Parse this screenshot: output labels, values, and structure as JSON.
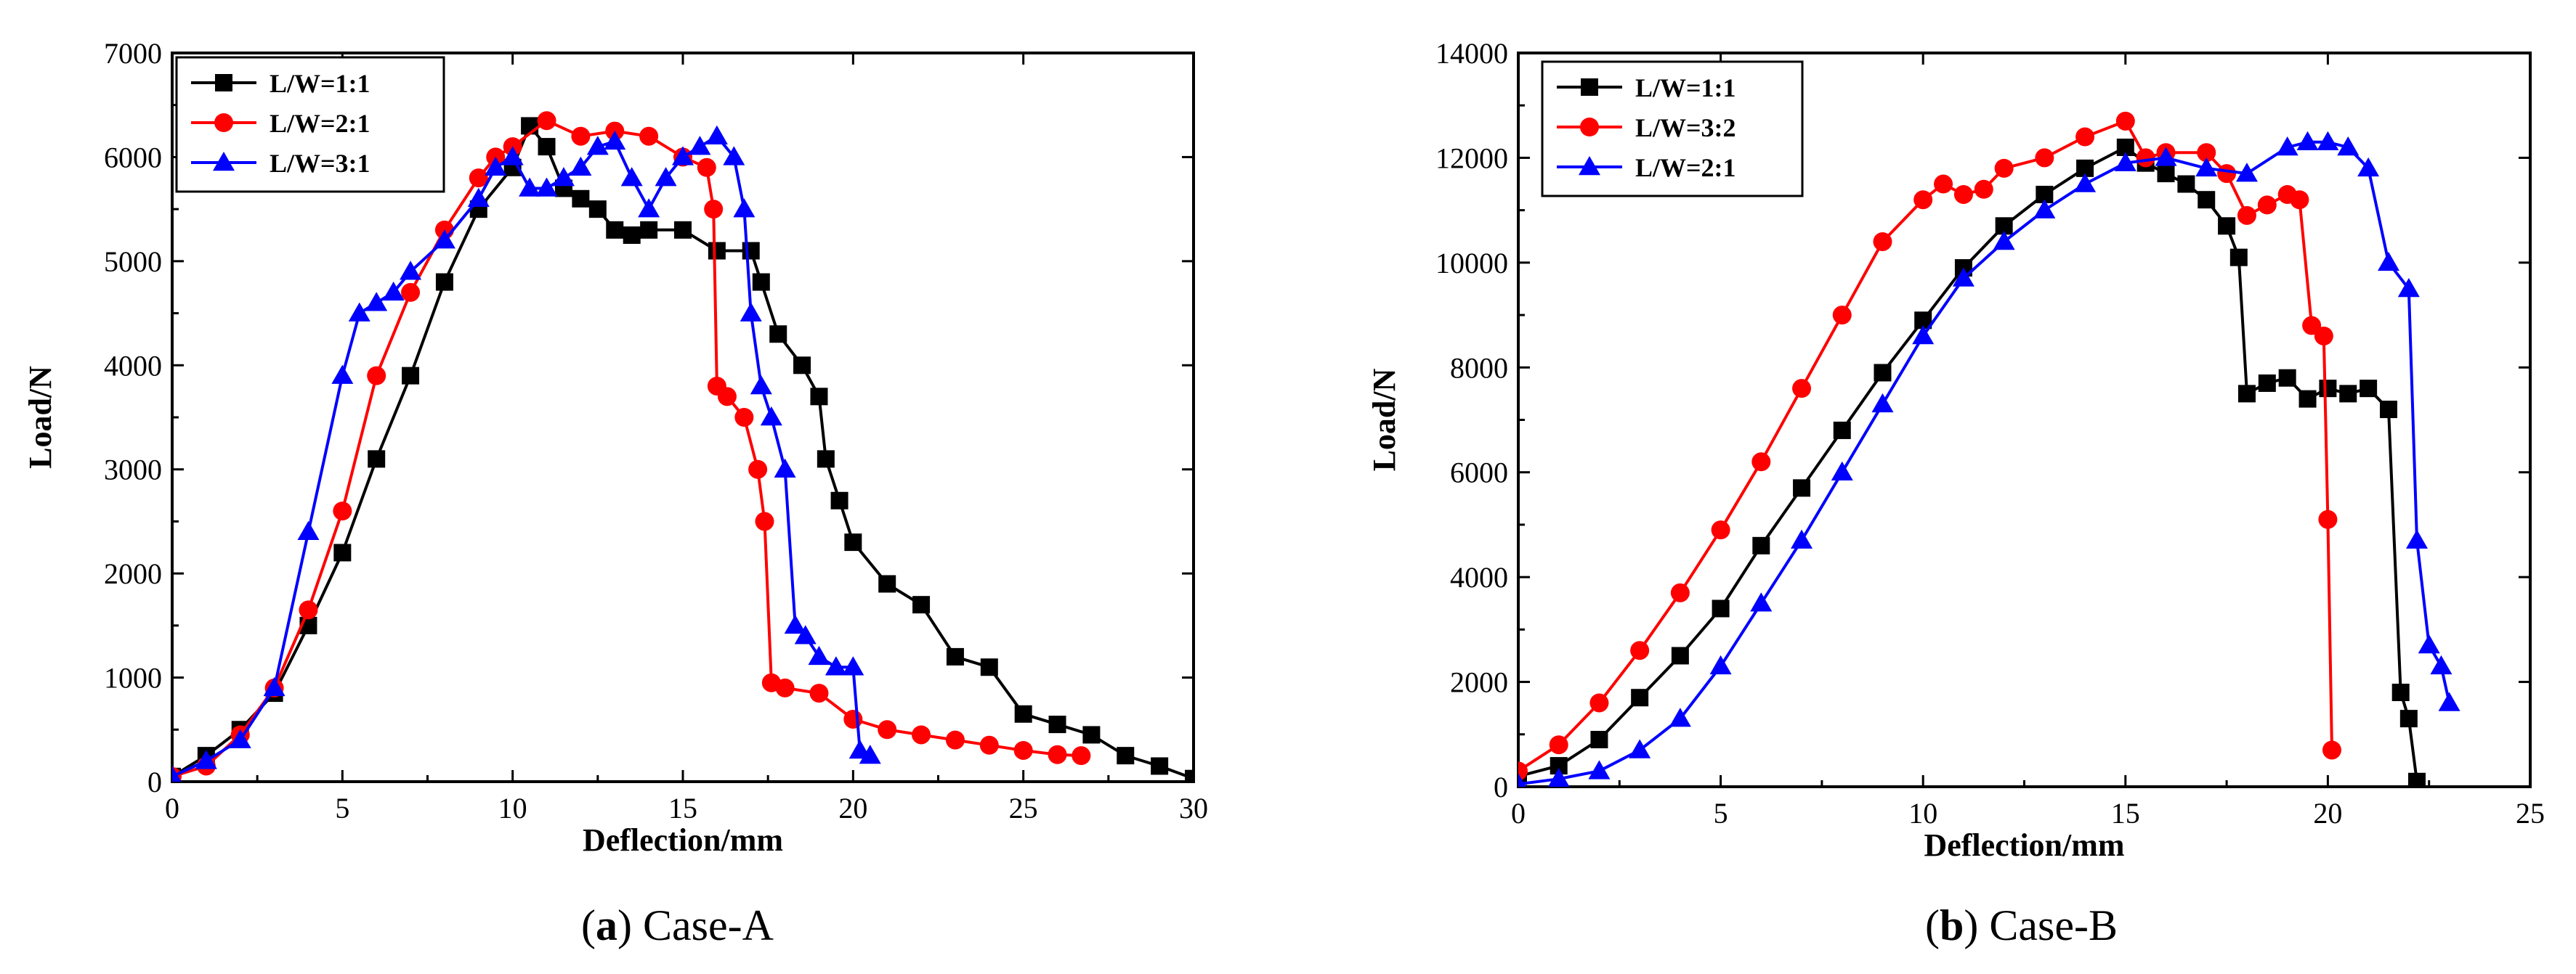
{
  "colors": {
    "series1": "#000000",
    "series2": "#ff0000",
    "series3": "#0000ff"
  },
  "chart_data": [
    {
      "type": "line",
      "caption": {
        "letter": "a",
        "text": "Case-A"
      },
      "xlabel": "Deflection/mm",
      "ylabel": "Load/N",
      "xlim": [
        0,
        30
      ],
      "ylim": [
        0,
        7000
      ],
      "xticks": [
        0,
        5,
        10,
        15,
        20,
        25,
        30
      ],
      "yticks": [
        0,
        1000,
        2000,
        3000,
        4000,
        5000,
        6000,
        7000
      ],
      "legend_position": "top-left",
      "series": [
        {
          "name": "L/W=1:1",
          "marker": "square",
          "color": "#000000",
          "x": [
            0,
            1,
            2,
            3,
            4,
            5,
            6,
            7,
            8,
            9,
            10,
            10.5,
            11,
            11.5,
            12,
            12.5,
            13,
            13.5,
            14,
            15,
            16,
            17,
            17.3,
            17.8,
            18.5,
            19,
            19.2,
            19.6,
            20,
            21,
            22,
            23,
            24,
            25,
            26,
            27,
            28,
            29,
            30
          ],
          "y": [
            50,
            250,
            500,
            850,
            1500,
            2200,
            3100,
            3900,
            4800,
            5500,
            5900,
            6300,
            6100,
            5700,
            5600,
            5500,
            5300,
            5250,
            5300,
            5300,
            5100,
            5100,
            4800,
            4300,
            4000,
            3700,
            3100,
            2700,
            2300,
            1900,
            1700,
            1200,
            1100,
            650,
            550,
            450,
            250,
            150,
            30
          ]
        },
        {
          "name": "L/W=2:1",
          "marker": "circle",
          "color": "#ff0000",
          "x": [
            0,
            1,
            2,
            3,
            4,
            5,
            6,
            7,
            8,
            9,
            9.5,
            10,
            11,
            12,
            13,
            14,
            15,
            15.7,
            15.9,
            16,
            16.3,
            16.8,
            17.2,
            17.4,
            17.6,
            18,
            19,
            20,
            21,
            22,
            23,
            24,
            25,
            26,
            26.7
          ],
          "y": [
            50,
            150,
            450,
            900,
            1650,
            2600,
            3900,
            4700,
            5300,
            5800,
            6000,
            6100,
            6350,
            6200,
            6250,
            6200,
            6000,
            5900,
            5500,
            3800,
            3700,
            3500,
            3000,
            2500,
            950,
            900,
            850,
            600,
            500,
            450,
            400,
            350,
            300,
            260,
            250
          ]
        },
        {
          "name": "L/W=3:1",
          "marker": "triangle",
          "color": "#0000ff",
          "x": [
            0,
            1,
            2,
            3,
            4,
            5,
            5.5,
            6,
            6.5,
            7,
            8,
            9,
            9.5,
            10,
            10.5,
            11,
            11.5,
            12,
            12.5,
            13,
            13.5,
            14,
            14.5,
            15,
            15.5,
            16,
            16.5,
            16.8,
            17,
            17.3,
            17.6,
            18,
            18.3,
            18.6,
            19,
            19.5,
            20,
            20.2,
            20.5
          ],
          "y": [
            50,
            200,
            400,
            900,
            2400,
            3900,
            4500,
            4600,
            4700,
            4900,
            5200,
            5600,
            5900,
            6000,
            5700,
            5700,
            5800,
            5900,
            6100,
            6150,
            5800,
            5500,
            5800,
            6000,
            6100,
            6200,
            6000,
            5500,
            4500,
            3800,
            3500,
            3000,
            1500,
            1400,
            1200,
            1100,
            1100,
            300,
            250
          ]
        }
      ]
    },
    {
      "type": "line",
      "caption": {
        "letter": "b",
        "text": "Case-B"
      },
      "xlabel": "Deflection/mm",
      "ylabel": "Load/N",
      "xlim": [
        0,
        25
      ],
      "ylim": [
        0,
        14000
      ],
      "xticks": [
        0,
        5,
        10,
        15,
        20,
        25
      ],
      "yticks": [
        0,
        2000,
        4000,
        6000,
        8000,
        10000,
        12000,
        14000
      ],
      "legend_position": "top-left",
      "series": [
        {
          "name": "L/W=1:1",
          "marker": "square",
          "color": "#000000",
          "x": [
            0,
            1,
            2,
            3,
            4,
            5,
            6,
            7,
            8,
            9,
            10,
            11,
            12,
            13,
            14,
            15,
            15.5,
            16,
            16.5,
            17,
            17.5,
            17.8,
            18,
            18.5,
            19,
            19.5,
            20,
            20.5,
            21,
            21.5,
            21.8,
            22,
            22.2
          ],
          "y": [
            200,
            400,
            900,
            1700,
            2500,
            3400,
            4600,
            5700,
            6800,
            7900,
            8900,
            9900,
            10700,
            11300,
            11800,
            12200,
            11900,
            11700,
            11500,
            11200,
            10700,
            10100,
            7500,
            7700,
            7800,
            7400,
            7600,
            7500,
            7600,
            7200,
            1800,
            1300,
            100
          ]
        },
        {
          "name": "L/W=3:2",
          "marker": "circle",
          "color": "#ff0000",
          "x": [
            0,
            1,
            2,
            3,
            4,
            5,
            6,
            7,
            8,
            9,
            10,
            10.5,
            11,
            11.5,
            12,
            13,
            14,
            15,
            15.5,
            16,
            17,
            17.5,
            18,
            18.5,
            19,
            19.3,
            19.6,
            19.9,
            20,
            20.1
          ],
          "y": [
            300,
            800,
            1600,
            2600,
            3700,
            4900,
            6200,
            7600,
            9000,
            10400,
            11200,
            11500,
            11300,
            11400,
            11800,
            12000,
            12400,
            12700,
            12000,
            12100,
            12100,
            11700,
            10900,
            11100,
            11300,
            11200,
            8800,
            8600,
            5100,
            700
          ]
        },
        {
          "name": "L/W=2:1",
          "marker": "triangle",
          "color": "#0000ff",
          "x": [
            0,
            1,
            2,
            3,
            4,
            5,
            6,
            7,
            8,
            9,
            10,
            11,
            12,
            13,
            14,
            15,
            16,
            17,
            18,
            19,
            19.5,
            20,
            20.5,
            21,
            21.5,
            22,
            22.2,
            22.5,
            22.8,
            23
          ],
          "y": [
            50,
            150,
            300,
            700,
            1300,
            2300,
            3500,
            4700,
            6000,
            7300,
            8600,
            9700,
            10400,
            11000,
            11500,
            11900,
            12000,
            11800,
            11700,
            12200,
            12300,
            12300,
            12200,
            11800,
            10000,
            9500,
            4700,
            2700,
            2300,
            1600
          ]
        }
      ]
    }
  ]
}
